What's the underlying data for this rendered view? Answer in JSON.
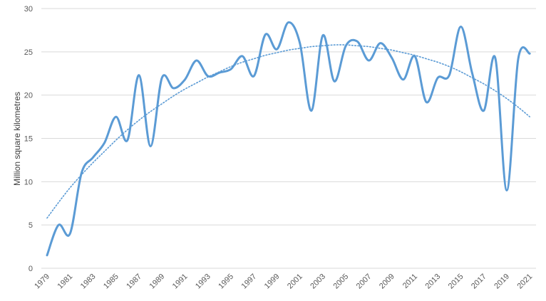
{
  "chart_data": {
    "type": "line",
    "title": "",
    "xlabel": "",
    "ylabel": "Million square kilometres",
    "ylim": [
      0,
      30
    ],
    "yticks": [
      "0",
      "5",
      "10",
      "15",
      "20",
      "25",
      "30"
    ],
    "xtick_labels": [
      "1979",
      "1981",
      "1983",
      "1985",
      "1987",
      "1989",
      "1991",
      "1993",
      "1995",
      "1997",
      "1999",
      "2001",
      "2003",
      "2005",
      "2007",
      "2009",
      "2011",
      "2013",
      "2015",
      "2017",
      "2019",
      "2021"
    ],
    "grid": true,
    "legend": "none",
    "series": [
      {
        "style": "solid",
        "color": "#5B9BD5",
        "x": [
          1979,
          1980,
          1981,
          1982,
          1983,
          1984,
          1985,
          1986,
          1987,
          1988,
          1989,
          1990,
          1991,
          1992,
          1993,
          1994,
          1995,
          1996,
          1997,
          1998,
          1999,
          2000,
          2001,
          2002,
          2003,
          2004,
          2005,
          2006,
          2007,
          2008,
          2009,
          2010,
          2011,
          2012,
          2013,
          2014,
          2015,
          2016,
          2017,
          2018,
          2019,
          2020,
          2021
        ],
        "values": [
          1.5,
          5.0,
          4.0,
          11.0,
          12.8,
          14.5,
          17.5,
          14.8,
          22.3,
          14.1,
          22.0,
          20.8,
          21.8,
          24.0,
          22.2,
          22.6,
          23.0,
          24.5,
          22.2,
          27.0,
          25.3,
          28.4,
          26.0,
          18.2,
          26.9,
          21.6,
          25.7,
          26.2,
          24.0,
          26.0,
          24.3,
          21.8,
          24.5,
          19.2,
          22.0,
          22.3,
          27.9,
          22.5,
          18.2,
          24.3,
          9.0,
          24.2,
          24.8
        ]
      },
      {
        "style": "dotted",
        "color": "#5B9BD5",
        "x": [
          1979,
          1980,
          1981,
          1982,
          1983,
          1984,
          1985,
          1986,
          1987,
          1988,
          1989,
          1990,
          1991,
          1992,
          1993,
          1994,
          1995,
          1996,
          1997,
          1998,
          1999,
          2000,
          2001,
          2002,
          2003,
          2004,
          2005,
          2006,
          2007,
          2008,
          2009,
          2010,
          2011,
          2012,
          2013,
          2014,
          2015,
          2016,
          2017,
          2018,
          2019,
          2020,
          2021
        ],
        "values": [
          5.8,
          7.6,
          9.3,
          10.8,
          12.2,
          13.5,
          14.8,
          16.0,
          17.1,
          18.1,
          19.0,
          19.9,
          20.7,
          21.4,
          22.1,
          22.7,
          23.3,
          23.8,
          24.2,
          24.6,
          24.9,
          25.2,
          25.4,
          25.6,
          25.7,
          25.8,
          25.8,
          25.7,
          25.6,
          25.4,
          25.2,
          24.9,
          24.6,
          24.2,
          23.8,
          23.3,
          22.7,
          22.0,
          21.3,
          20.5,
          19.6,
          18.6,
          17.5
        ]
      }
    ]
  }
}
